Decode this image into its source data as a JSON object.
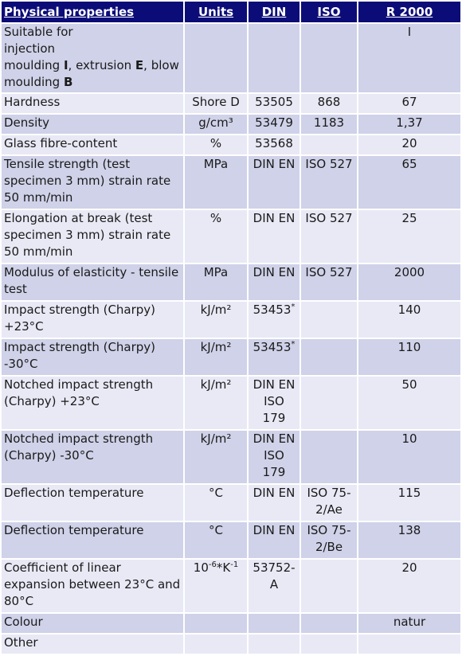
{
  "headers": [
    "Physical properties",
    "Units",
    "DIN",
    "ISO",
    "R 2000"
  ],
  "rows": [
    {
      "property_parts": [
        "Suitable for",
        "injection",
        "moulding ",
        "I",
        ", extrusion ",
        "E",
        ", blow",
        "moulding ",
        "B"
      ],
      "units": "",
      "din": "",
      "iso": "",
      "value": "I"
    },
    {
      "property": "Hardness",
      "units": "Shore D",
      "din": "53505",
      "iso": "868",
      "value": "67"
    },
    {
      "property": "Density",
      "units": "g/cm³",
      "din": "53479",
      "iso": "1183",
      "value": "1,37"
    },
    {
      "property": "Glass fibre-content",
      "units": "%",
      "din": "53568",
      "iso": "",
      "value": "20"
    },
    {
      "property": "Tensile strength (test specimen 3 mm) strain rate 50 mm/min",
      "units": "MPa",
      "din": "DIN EN",
      "iso": "ISO 527",
      "value": "65"
    },
    {
      "property": "Elongation at break (test specimen 3 mm) strain rate 50 mm/min",
      "units": "%",
      "din": "DIN EN",
      "iso": "ISO 527",
      "value": "25"
    },
    {
      "property": "Modulus of elasticity - tensile test",
      "units": "MPa",
      "din": "DIN EN",
      "iso": "ISO 527",
      "value": "2000"
    },
    {
      "property": "Impact strength (Charpy) +23°C",
      "units": "kJ/m²",
      "din": "53453",
      "din_mark": "*",
      "iso": "",
      "value": "140"
    },
    {
      "property": "Impact strength (Charpy) -30°C",
      "units": "kJ/m²",
      "din": "53453",
      "din_mark": "*",
      "iso": "",
      "value": "110"
    },
    {
      "property": "Notched impact strength (Charpy) +23°C",
      "units": "kJ/m²",
      "din": "DIN EN ISO 179",
      "iso": "",
      "value": "50"
    },
    {
      "property": "Notched impact strength (Charpy) -30°C",
      "units": "kJ/m²",
      "din": "DIN EN ISO 179",
      "iso": "",
      "value": "10"
    },
    {
      "property": "Deflection temperature",
      "units": "°C",
      "din": "DIN EN",
      "iso": "ISO 75-2/Ae",
      "value": "115"
    },
    {
      "property": "Deflection temperature",
      "units": "°C",
      "din": "DIN EN",
      "iso": "ISO 75-2/Be",
      "value": "138"
    },
    {
      "property": "Coefficient of linear expansion between 23°C and 80°C",
      "units_parts": [
        "10",
        "-6",
        "*K",
        "-1"
      ],
      "din": "53752-A",
      "iso": "",
      "value": "20"
    },
    {
      "property": "Colour",
      "units": "",
      "din": "",
      "iso": "",
      "value": "natur"
    },
    {
      "property": "Other",
      "units": "",
      "din": "",
      "iso": "",
      "value": ""
    }
  ]
}
